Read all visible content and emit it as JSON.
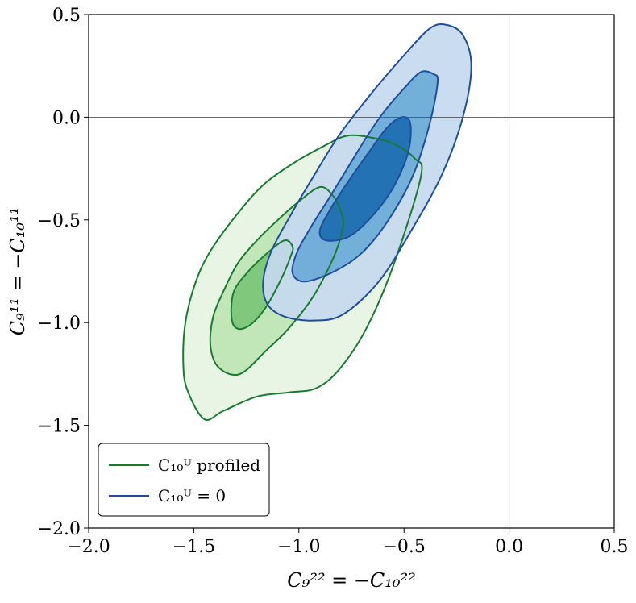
{
  "chart_data": {
    "type": "contour",
    "xlabel": "C₉²² = −C₁₀²²",
    "ylabel": "C₉¹¹ = −C₁₀¹¹",
    "xlim": [
      -2.0,
      0.5
    ],
    "ylim": [
      -2.0,
      0.5
    ],
    "xticks": [
      "−2.0",
      "−1.5",
      "−1.0",
      "−0.5",
      "0.0",
      "0.5"
    ],
    "yticks": [
      "−2.0",
      "−1.5",
      "−1.0",
      "−0.5",
      "0.0",
      "0.5"
    ],
    "xtick_values": [
      -2.0,
      -1.5,
      -1.0,
      -0.5,
      0.0,
      0.5
    ],
    "ytick_values": [
      -2.0,
      -1.5,
      -1.0,
      -0.5,
      0.0,
      0.5
    ],
    "reference_lines": {
      "x": 0.0,
      "y": 0.0
    },
    "legend_position": "lower-left",
    "series": [
      {
        "name": "C₁₀ᵁ profiled",
        "edge_color": "#1b7a32",
        "fill_colors": [
          "#e9f5e4",
          "#c1e6b8",
          "#80c87c"
        ],
        "contours": [
          [
            [
              -0.42,
              -0.29
            ],
            [
              -0.55,
              -0.72
            ],
            [
              -0.68,
              -1.03
            ],
            [
              -0.81,
              -1.23
            ],
            [
              -0.92,
              -1.32
            ],
            [
              -1.05,
              -1.34
            ],
            [
              -1.2,
              -1.36
            ],
            [
              -1.36,
              -1.43
            ],
            [
              -1.45,
              -1.47
            ],
            [
              -1.53,
              -1.33
            ],
            [
              -1.55,
              -1.2
            ],
            [
              -1.54,
              -1.0
            ],
            [
              -1.49,
              -0.8
            ],
            [
              -1.42,
              -0.65
            ],
            [
              -1.3,
              -0.48
            ],
            [
              -1.17,
              -0.33
            ],
            [
              -1.02,
              -0.22
            ],
            [
              -0.88,
              -0.14
            ],
            [
              -0.77,
              -0.09
            ],
            [
              -0.65,
              -0.1
            ],
            [
              -0.55,
              -0.13
            ],
            [
              -0.45,
              -0.2
            ]
          ],
          [
            [
              -0.79,
              -0.53
            ],
            [
              -0.83,
              -0.67
            ],
            [
              -0.93,
              -0.87
            ],
            [
              -1.05,
              -1.03
            ],
            [
              -1.15,
              -1.13
            ],
            [
              -1.28,
              -1.25
            ],
            [
              -1.38,
              -1.22
            ],
            [
              -1.42,
              -1.12
            ],
            [
              -1.41,
              -0.98
            ],
            [
              -1.36,
              -0.85
            ],
            [
              -1.29,
              -0.71
            ],
            [
              -1.2,
              -0.6
            ],
            [
              -1.1,
              -0.5
            ],
            [
              -1.0,
              -0.41
            ],
            [
              -0.9,
              -0.34
            ],
            [
              -0.84,
              -0.38
            ],
            [
              -0.8,
              -0.46
            ]
          ],
          [
            [
              -1.04,
              -0.68
            ],
            [
              -1.09,
              -0.8
            ],
            [
              -1.16,
              -0.93
            ],
            [
              -1.23,
              -1.01
            ],
            [
              -1.29,
              -1.03
            ],
            [
              -1.32,
              -0.98
            ],
            [
              -1.31,
              -0.85
            ],
            [
              -1.24,
              -0.75
            ],
            [
              -1.16,
              -0.67
            ],
            [
              -1.07,
              -0.6
            ],
            [
              -1.03,
              -0.63
            ]
          ]
        ]
      },
      {
        "name": "C₁₀ᵁ = 0",
        "edge_color": "#1f4e9a",
        "fill_colors": [
          "#c6d9ee",
          "#6aaad7",
          "#1c6db0"
        ],
        "contours": [
          [
            [
              -0.18,
              0.25
            ],
            [
              -0.22,
              0.0
            ],
            [
              -0.32,
              -0.28
            ],
            [
              -0.47,
              -0.56
            ],
            [
              -0.62,
              -0.8
            ],
            [
              -0.79,
              -0.96
            ],
            [
              -0.93,
              -0.99
            ],
            [
              -1.07,
              -0.97
            ],
            [
              -1.15,
              -0.91
            ],
            [
              -1.17,
              -0.8
            ],
            [
              -1.13,
              -0.65
            ],
            [
              -1.03,
              -0.46
            ],
            [
              -0.92,
              -0.27
            ],
            [
              -0.81,
              -0.09
            ],
            [
              -0.66,
              0.11
            ],
            [
              -0.51,
              0.29
            ],
            [
              -0.38,
              0.43
            ],
            [
              -0.3,
              0.45
            ],
            [
              -0.22,
              0.4
            ]
          ],
          [
            [
              -0.34,
              0.17
            ],
            [
              -0.38,
              -0.04
            ],
            [
              -0.46,
              -0.29
            ],
            [
              -0.58,
              -0.51
            ],
            [
              -0.7,
              -0.66
            ],
            [
              -0.83,
              -0.75
            ],
            [
              -0.97,
              -0.8
            ],
            [
              -1.03,
              -0.76
            ],
            [
              -1.01,
              -0.66
            ],
            [
              -0.94,
              -0.53
            ],
            [
              -0.86,
              -0.4
            ],
            [
              -0.77,
              -0.25
            ],
            [
              -0.68,
              -0.1
            ],
            [
              -0.6,
              0.02
            ],
            [
              -0.5,
              0.14
            ],
            [
              -0.42,
              0.22
            ],
            [
              -0.36,
              0.21
            ]
          ],
          [
            [
              -0.47,
              -0.03
            ],
            [
              -0.48,
              -0.17
            ],
            [
              -0.55,
              -0.34
            ],
            [
              -0.65,
              -0.48
            ],
            [
              -0.76,
              -0.58
            ],
            [
              -0.87,
              -0.6
            ],
            [
              -0.9,
              -0.55
            ],
            [
              -0.84,
              -0.43
            ],
            [
              -0.75,
              -0.29
            ],
            [
              -0.66,
              -0.16
            ],
            [
              -0.58,
              -0.05
            ],
            [
              -0.51,
              0.0
            ]
          ]
        ]
      }
    ]
  }
}
